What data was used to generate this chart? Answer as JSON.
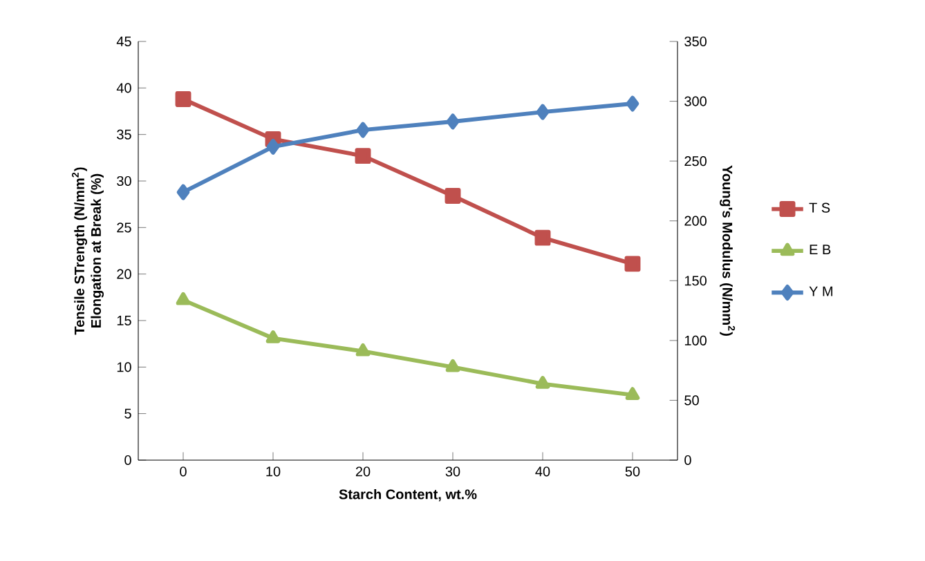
{
  "chart_data": {
    "type": "line",
    "xlabel": "Starch Content, wt.%",
    "ylabel": [
      "Tensile STrength (N/mm$^{2}$)",
      "Elongation at Break (%)"
    ],
    "y2label": "Young's Modulus (N/mm$^{2}$)",
    "categories": [
      "0",
      "10",
      "20",
      "30",
      "40",
      "50"
    ],
    "ylim": [
      0,
      45
    ],
    "yticks": [
      0,
      5,
      10,
      15,
      20,
      25,
      30,
      35,
      40,
      45
    ],
    "y2lim": [
      0,
      350
    ],
    "y2ticks": [
      0,
      50,
      100,
      150,
      200,
      250,
      300,
      350
    ],
    "grid": false,
    "legend": "right",
    "line_style": "solid",
    "series": [
      {
        "name": "T S",
        "color": "#c0504d",
        "marker": "square",
        "values": [
          38.8,
          34.5,
          32.7,
          28.4,
          23.9,
          21.1
        ]
      },
      {
        "name": "E B",
        "color": "#9bbb59",
        "marker": "triangle",
        "values": [
          17.2,
          13.1,
          11.7,
          10.0,
          8.2,
          7.0
        ]
      },
      {
        "name": "Y M",
        "color": "#4f81bd",
        "marker": "diamond",
        "axis": "y2",
        "values": [
          224,
          262,
          276,
          283,
          291,
          298
        ]
      }
    ]
  }
}
